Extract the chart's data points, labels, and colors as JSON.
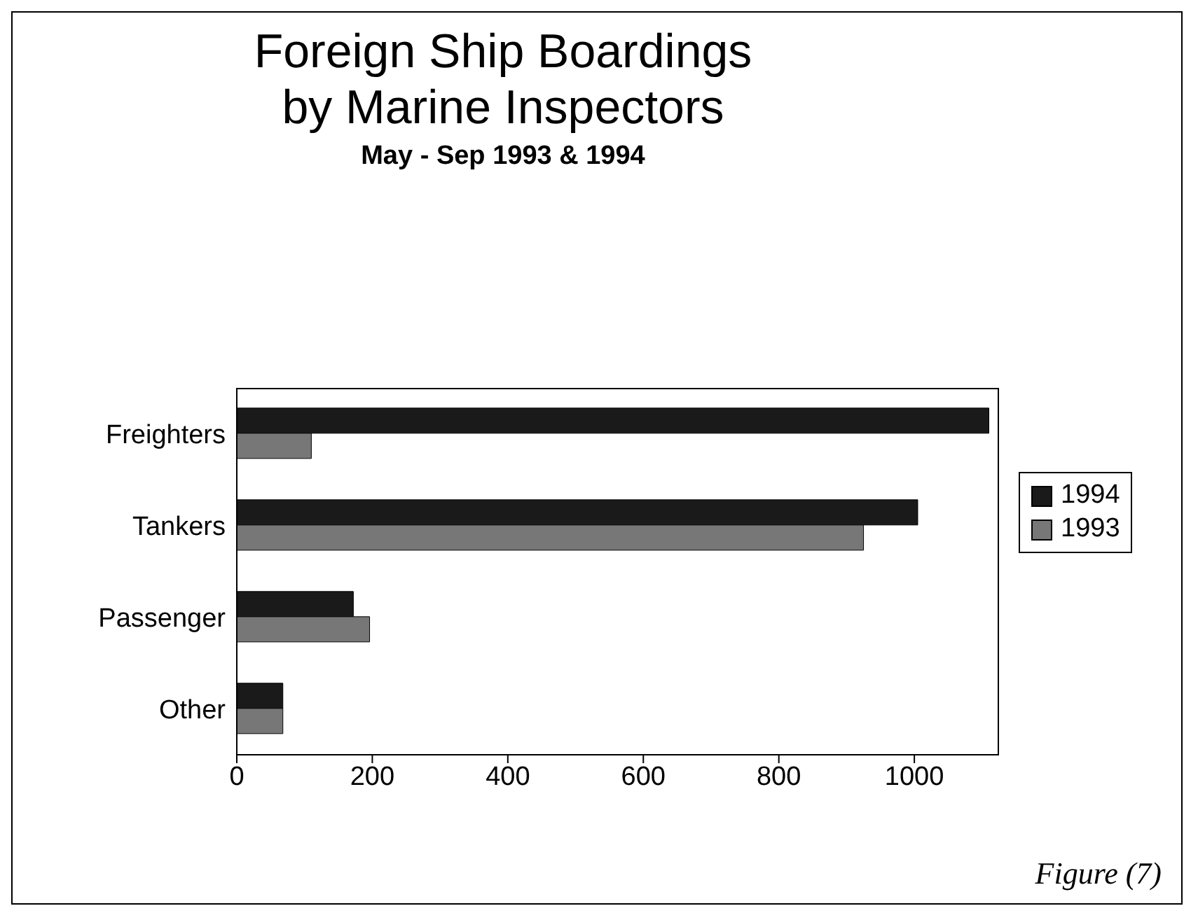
{
  "chart_data": {
    "type": "bar",
    "orientation": "horizontal",
    "title": "Foreign Ship Boardings\nby Marine Inspectors",
    "subtitle": "May - Sep 1993 & 1994",
    "categories": [
      "Freighters",
      "Tankers",
      "Passenger",
      "Other"
    ],
    "series": [
      {
        "name": "1994",
        "color": "#1a1a1a",
        "values": [
          1110,
          1005,
          172,
          68
        ]
      },
      {
        "name": "1993",
        "color": "#777777",
        "values": [
          110,
          925,
          196,
          68
        ]
      }
    ],
    "xlim": [
      0,
      1125
    ],
    "xticks": [
      0,
      200,
      400,
      600,
      800,
      1000
    ],
    "grid": false,
    "legend": "right",
    "annotations": [
      "Figure (7)"
    ]
  }
}
